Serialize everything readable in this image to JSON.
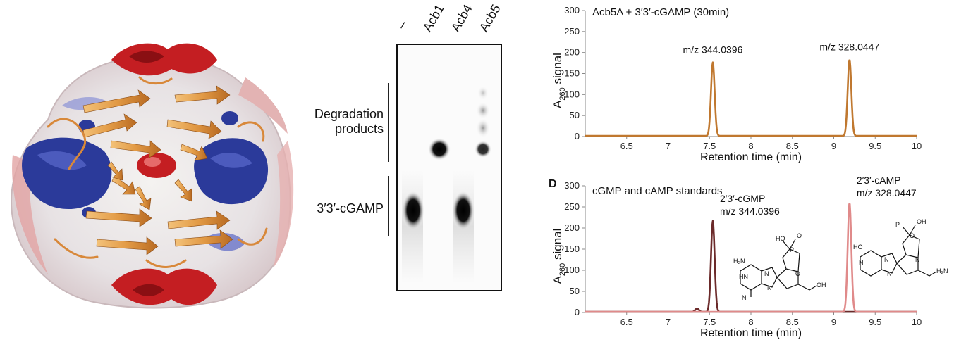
{
  "gel": {
    "lanes": [
      "–",
      "Acb1",
      "Acb4",
      "Acb5"
    ],
    "labels": {
      "degradation_line1": "Degradation",
      "degradation_line2": "products",
      "substrate": "3′3′-cGAMP"
    }
  },
  "colors": {
    "top_trace": "#c0782f",
    "bottom_cgmp": "#6b2a2a",
    "bottom_camp": "#e08a8a",
    "protein_blue": "#2b3a9a",
    "protein_red": "#c41e22",
    "ribbon_orange": "#e29a45"
  },
  "chart_data": [
    {
      "type": "line",
      "title": "Acb5A + 3′3′-cGAMP (30min)",
      "xlabel": "Retention time (min)",
      "ylabel_main": "A",
      "ylabel_sub": "260",
      "ylabel_rest": " signal",
      "xlim": [
        6.0,
        10.0
      ],
      "ylim": [
        0,
        300
      ],
      "xticks": [
        "6.5",
        "7",
        "7.5",
        "8",
        "8.5",
        "9",
        "9.5",
        "10"
      ],
      "yticks": [
        "0",
        "50",
        "100",
        "150",
        "200",
        "250",
        "300"
      ],
      "series": [
        {
          "color": "#c0782f",
          "peaks": [
            {
              "x": 7.54,
              "y": 175,
              "label": "m/z 344.0396"
            },
            {
              "x": 9.19,
              "y": 182,
              "label": "m/z 328.0447"
            }
          ]
        }
      ]
    },
    {
      "type": "line",
      "panel_letter": "D",
      "title": "cGMP and cAMP standards",
      "xlabel": "Retention time (min)",
      "ylabel_main": "A",
      "ylabel_sub": "260",
      "ylabel_rest": " signal",
      "xlim": [
        6.0,
        10.0
      ],
      "ylim": [
        0,
        300
      ],
      "xticks": [
        "6.5",
        "7",
        "7.5",
        "8",
        "8.5",
        "9",
        "9.5",
        "10"
      ],
      "yticks": [
        "0",
        "50",
        "100",
        "150",
        "200",
        "250",
        "300"
      ],
      "series": [
        {
          "color": "#6b2a2a",
          "peaks": [
            {
              "x": 7.35,
              "y": 8
            },
            {
              "x": 7.54,
              "y": 215,
              "label1": "2′3′-cGMP",
              "label2": "m/z 344.0396"
            }
          ]
        },
        {
          "color": "#e08a8a",
          "peaks": [
            {
              "x": 9.19,
              "y": 258,
              "label1": "2′3′-cAMP",
              "label2": "m/z 328.0447"
            }
          ]
        }
      ],
      "structure_labels": {
        "cgmp": [
          "H₂N",
          "HO",
          "P",
          "O",
          "OH",
          "O",
          "N",
          "HN",
          "N",
          "N"
        ],
        "camp": [
          "HO",
          "P",
          "O",
          "OH",
          "H₂N",
          "N",
          "N",
          "N",
          "N"
        ]
      }
    }
  ]
}
